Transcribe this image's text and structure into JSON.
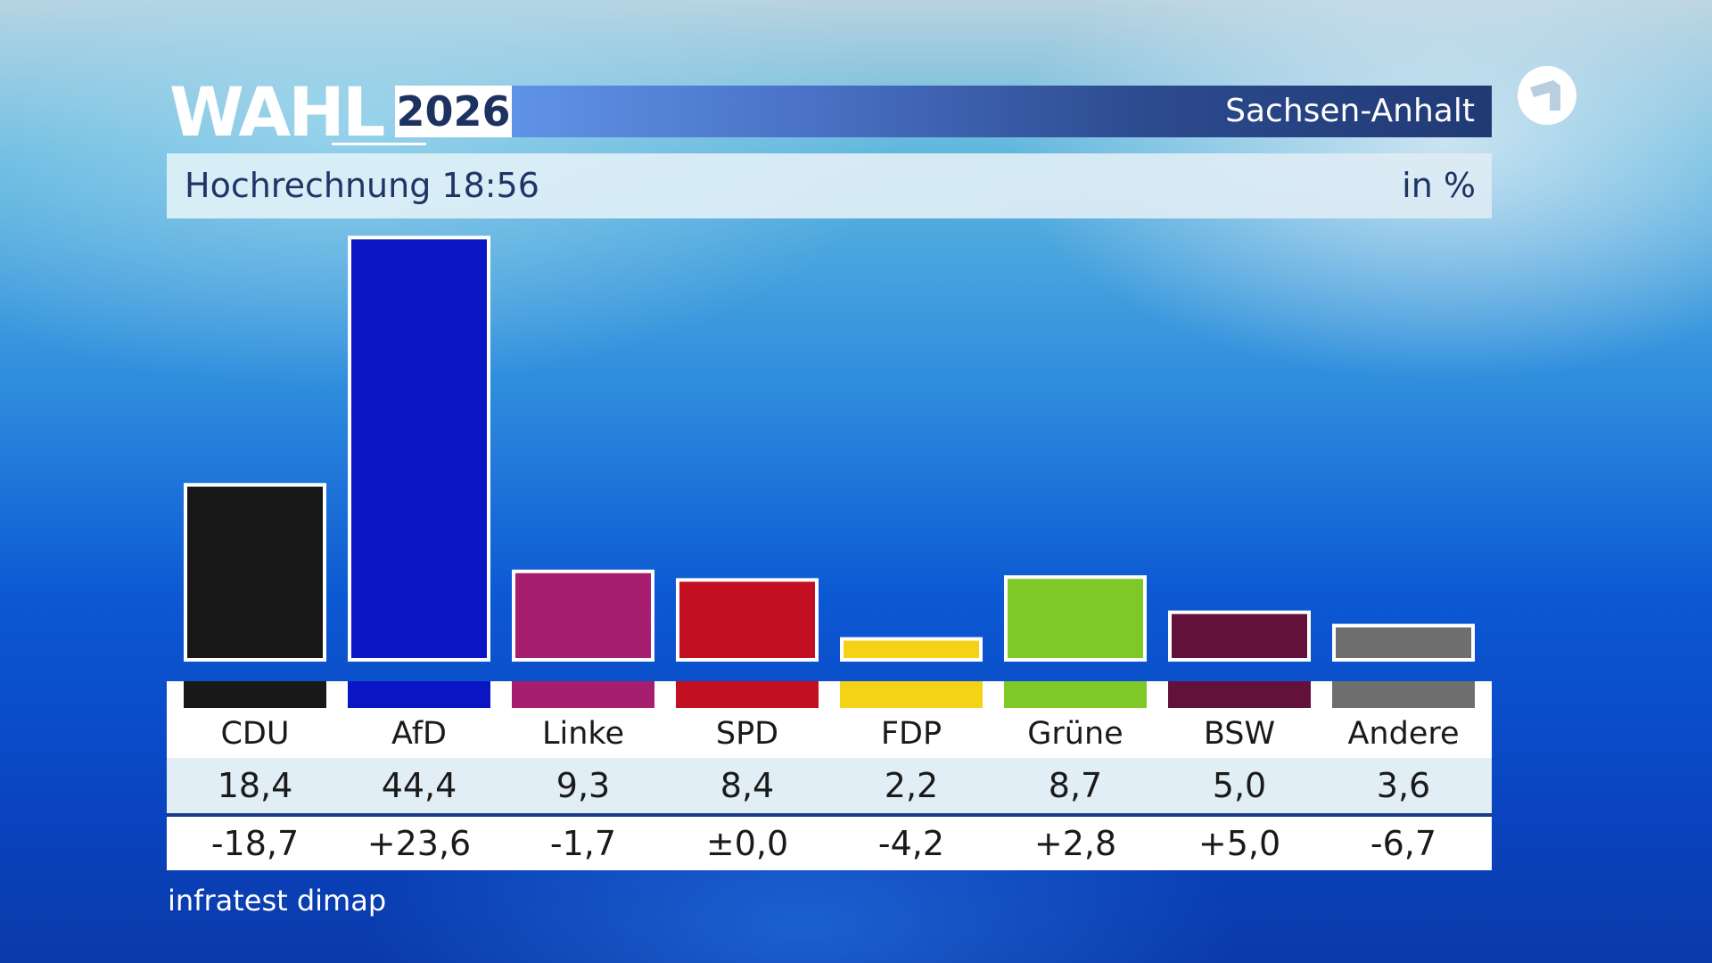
{
  "header": {
    "logo_text": "WAHL",
    "year": "2026",
    "region": "Sachsen-Anhalt",
    "broadcaster_logo_icon": "ard-1-icon"
  },
  "subtitle": {
    "title": "Hochrechnung 18:56",
    "unit": "in %"
  },
  "source": "infratest dimap",
  "chart_data": {
    "type": "bar",
    "title": "Hochrechnung 18:56",
    "ylabel": "in %",
    "categories": [
      "CDU",
      "AfD",
      "Linke",
      "SPD",
      "FDP",
      "Grüne",
      "BSW",
      "Andere"
    ],
    "values": [
      18.4,
      44.4,
      9.3,
      8.4,
      2.2,
      8.7,
      5.0,
      3.6
    ],
    "value_labels": [
      "18,4",
      "44,4",
      "9,3",
      "8,4",
      "2,2",
      "8,7",
      "5,0",
      "3,6"
    ],
    "changes": [
      "-18,7",
      "+23,6",
      "-1,7",
      "±0,0",
      "-4,2",
      "+2,8",
      "+5,0",
      "-6,7"
    ],
    "colors": [
      "#181818",
      "#0a16c4",
      "#a81e6e",
      "#c20f21",
      "#f4d216",
      "#7ec828",
      "#62113a",
      "#6e6e6e"
    ],
    "ylim": [
      0,
      45
    ],
    "grid": false,
    "legend": "none"
  }
}
